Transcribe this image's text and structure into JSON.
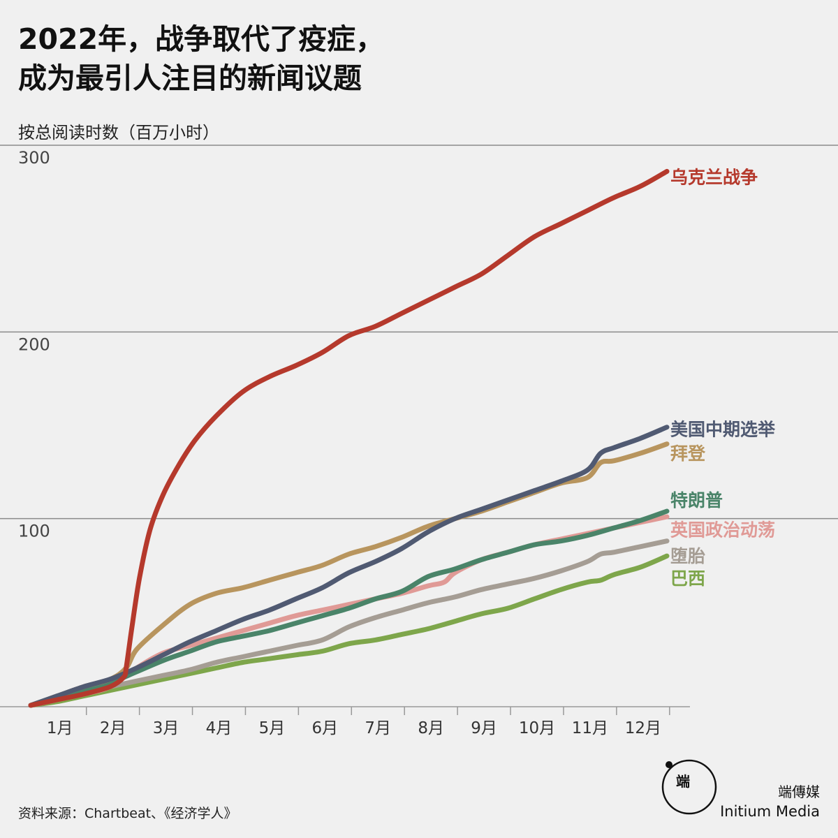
{
  "title": {
    "line1": "2022年，战争取代了疫症，",
    "line2": "成为最引人注目的新闻议题"
  },
  "ylabel": "按总阅读时数（百万小时）",
  "source": "资料来源：Chartbeat、《经济学人》",
  "brand": {
    "cn": "端傳媒",
    "en": "Initium Media",
    "logo_glyph": "端"
  },
  "chart_data": {
    "type": "line",
    "ylim": [
      0,
      300
    ],
    "y_ticks": [
      100,
      200,
      300
    ],
    "x_range": [
      1,
      13
    ],
    "x_ticks": [
      {
        "label": "1月",
        "at": 1.55
      },
      {
        "label": "2月",
        "at": 2.55
      },
      {
        "label": "3月",
        "at": 3.55
      },
      {
        "label": "4月",
        "at": 4.55
      },
      {
        "label": "5月",
        "at": 5.55
      },
      {
        "label": "6月",
        "at": 6.55
      },
      {
        "label": "7月",
        "at": 7.55
      },
      {
        "label": "8月",
        "at": 8.55
      },
      {
        "label": "9月",
        "at": 9.55
      },
      {
        "label": "10月",
        "at": 10.55
      },
      {
        "label": "11月",
        "at": 11.55
      },
      {
        "label": "12月",
        "at": 12.55
      }
    ],
    "month_dividers": [
      2.05,
      3.05,
      4.05,
      5.05,
      6.05,
      7.05,
      8.05,
      9.05,
      10.05,
      11.05,
      12.05,
      13.05
    ],
    "grid": true,
    "series": [
      {
        "name": "乌克兰战争",
        "color": "#b5392c",
        "x": [
          1,
          1.5,
          2,
          2.5,
          2.75,
          2.8,
          2.9,
          3.05,
          3.25,
          3.5,
          3.8,
          4.1,
          4.5,
          5,
          5.5,
          6,
          6.5,
          7,
          7.5,
          8,
          8.5,
          9,
          9.5,
          10,
          10.5,
          11,
          11.5,
          12,
          12.5,
          13
        ],
        "y": [
          0,
          3,
          6,
          10,
          15,
          20,
          40,
          68,
          94,
          113,
          129,
          142,
          155,
          168,
          176,
          182,
          189,
          198,
          203,
          210,
          217,
          224,
          231,
          241,
          251,
          258,
          265,
          272,
          278,
          286
        ]
      },
      {
        "name": "美国中期选举",
        "color": "#505a72",
        "x": [
          1,
          1.5,
          2,
          2.5,
          3,
          3.5,
          4,
          4.5,
          5,
          5.5,
          6,
          6.5,
          7,
          7.5,
          8,
          8.5,
          9,
          9.5,
          10,
          10.5,
          11,
          11.5,
          11.75,
          12,
          12.5,
          13
        ],
        "y": [
          0,
          5,
          10,
          14,
          20,
          27,
          34,
          40,
          46,
          51,
          57,
          63,
          71,
          77,
          84,
          93,
          100,
          105,
          110,
          115,
          120,
          126,
          135,
          138,
          143,
          149
        ]
      },
      {
        "name": "拜登",
        "color": "#b8955e",
        "x": [
          1,
          1.5,
          2,
          2.5,
          2.8,
          3.0,
          3.5,
          4,
          4.5,
          5,
          5.5,
          6,
          6.5,
          7,
          7.5,
          8,
          8.5,
          9,
          9.5,
          10,
          10.5,
          11,
          11.5,
          11.75,
          12,
          12.5,
          13
        ],
        "y": [
          0,
          5,
          10,
          14,
          20,
          30,
          43,
          54,
          60,
          63,
          67,
          71,
          75,
          81,
          85,
          90,
          96,
          100,
          104,
          109,
          114,
          119,
          122,
          130,
          131,
          135,
          140
        ]
      },
      {
        "name": "特朗普",
        "color": "#4a8469",
        "x": [
          1,
          1.5,
          2,
          2.5,
          3,
          3.5,
          4,
          4.5,
          5,
          5.5,
          6,
          6.5,
          7,
          7.5,
          8,
          8.5,
          9,
          9.5,
          10,
          10.5,
          11,
          11.5,
          12,
          12.5,
          13
        ],
        "y": [
          0,
          4,
          8,
          12,
          18,
          24,
          29,
          34,
          37,
          40,
          44,
          48,
          52,
          57,
          61,
          69,
          73,
          78,
          82,
          86,
          88,
          91,
          95,
          99,
          104
        ]
      },
      {
        "name": "英国政治动荡",
        "color": "#e09a96",
        "x": [
          1,
          1.5,
          2,
          2.5,
          3,
          3.5,
          4,
          4.5,
          5,
          5.5,
          6,
          6.5,
          7,
          7.5,
          8,
          8.5,
          8.8,
          9,
          9.5,
          10,
          10.5,
          11,
          11.5,
          12,
          12.5,
          13
        ],
        "y": [
          0,
          3,
          6,
          10,
          20,
          28,
          32,
          36,
          40,
          44,
          48,
          51,
          54,
          57,
          60,
          64,
          66,
          71,
          78,
          82,
          86,
          89,
          92,
          95,
          98,
          101
        ]
      },
      {
        "name": "堕胎",
        "color": "#a59d94",
        "x": [
          1,
          1.5,
          2,
          2.5,
          3,
          3.5,
          4,
          4.5,
          5,
          5.5,
          6,
          6.5,
          7,
          7.5,
          8,
          8.5,
          9,
          9.5,
          10,
          10.5,
          11,
          11.5,
          11.75,
          12,
          12.5,
          13
        ],
        "y": [
          0,
          3,
          7,
          10,
          13,
          16,
          19,
          23,
          26,
          29,
          32,
          35,
          42,
          47,
          51,
          55,
          58,
          62,
          65,
          68,
          72,
          77,
          81,
          82,
          85,
          88
        ]
      },
      {
        "name": "巴西",
        "color": "#7ea64b",
        "x": [
          1,
          1.5,
          2,
          2.5,
          3,
          3.5,
          4,
          4.5,
          5,
          5.5,
          6,
          6.5,
          7,
          7.5,
          8,
          8.5,
          9,
          9.5,
          10,
          10.5,
          11,
          11.5,
          11.75,
          12,
          12.5,
          13
        ],
        "y": [
          0,
          2,
          5,
          8,
          11,
          14,
          17,
          20,
          23,
          25,
          27,
          29,
          33,
          35,
          38,
          41,
          45,
          49,
          52,
          57,
          62,
          66,
          67,
          70,
          74,
          80
        ]
      }
    ],
    "labels": [
      {
        "text": "乌克兰战争",
        "color": "#b5392c",
        "y": 283
      },
      {
        "text": "美国中期选举",
        "color": "#505a72",
        "y": 148
      },
      {
        "text": "拜登",
        "color": "#b8955e",
        "y": 135
      },
      {
        "text": "特朗普",
        "color": "#4a8469",
        "y": 110
      },
      {
        "text": "英国政治动荡",
        "color": "#e09a96",
        "y": 94
      },
      {
        "text": "堕胎",
        "color": "#a59d94",
        "y": 80
      },
      {
        "text": "巴西",
        "color": "#7ea64b",
        "y": 68
      }
    ]
  }
}
